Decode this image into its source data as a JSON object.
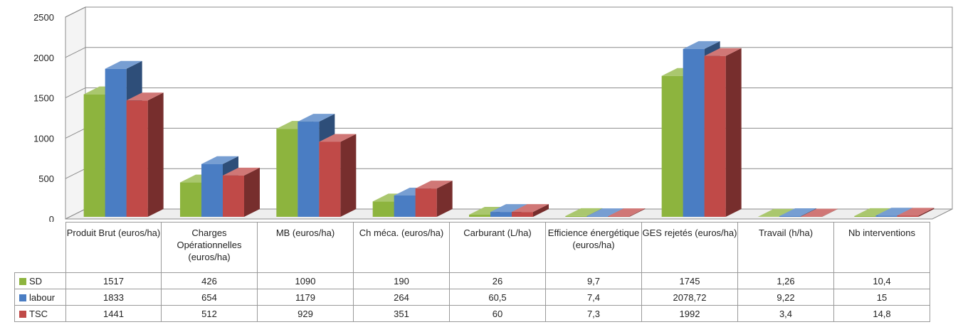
{
  "chart_data": {
    "type": "bar",
    "categories": [
      "Produit Brut (euros/ha)",
      "Charges Opérationnelles (euros/ha)",
      "MB (euros/ha)",
      "Ch méca. (euros/ha)",
      "Carburant (L/ha)",
      "Efficience énergétique (euros/ha)",
      "GES rejetés (euros/ha)",
      "Travail (h/ha)",
      "Nb interventions"
    ],
    "series": [
      {
        "name": "SD",
        "color": "#8db43e",
        "values": [
          1517,
          426,
          1090,
          190,
          26,
          9.7,
          1745,
          1.26,
          10.4
        ],
        "labels": [
          "1517",
          "426",
          "1090",
          "190",
          "26",
          "9,7",
          "1745",
          "1,26",
          "10,4"
        ]
      },
      {
        "name": "labour",
        "color": "#4a7dc3",
        "values": [
          1833,
          654,
          1179,
          264,
          60.5,
          7.4,
          2078.72,
          9.22,
          15
        ],
        "labels": [
          "1833",
          "654",
          "1179",
          "264",
          "60,5",
          "7,4",
          "2078,72",
          "9,22",
          "15"
        ]
      },
      {
        "name": "TSC",
        "color": "#c04a48",
        "values": [
          1441,
          512,
          929,
          351,
          60,
          7.3,
          1992,
          3.4,
          14.8
        ],
        "labels": [
          "1441",
          "512",
          "929",
          "351",
          "60",
          "7,3",
          "1992",
          "3,4",
          "14,8"
        ]
      }
    ],
    "yticks": [
      "0",
      "500",
      "1000",
      "1500",
      "2000",
      "2500"
    ],
    "ylim": [
      0,
      2500
    ],
    "grid": true,
    "legend": "data-table",
    "title": "",
    "xlabel": "",
    "ylabel": ""
  }
}
